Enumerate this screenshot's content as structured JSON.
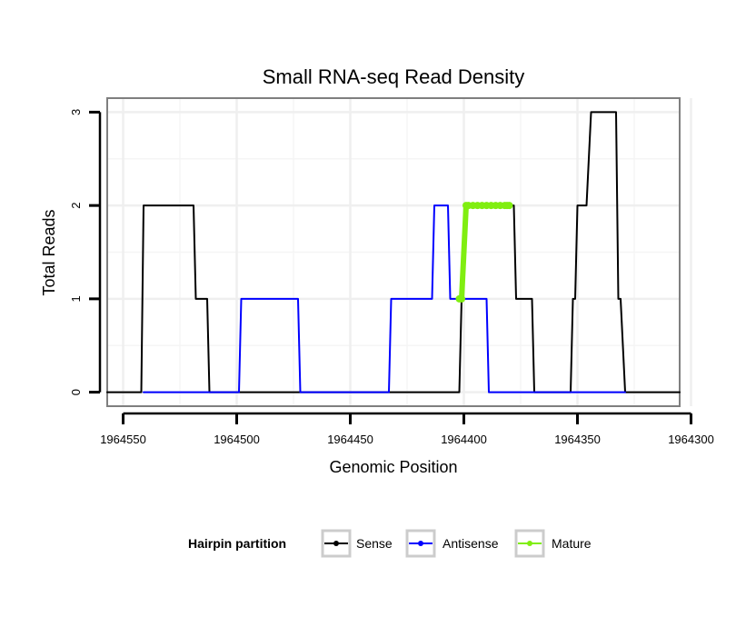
{
  "chart_data": {
    "type": "line",
    "title": "Small RNA-seq Read Density",
    "xlabel": "Genomic Position",
    "ylabel": "Total Reads",
    "x_reversed": true,
    "xlim": [
      1964557,
      1964305
    ],
    "ylim": [
      -0.15,
      3.15
    ],
    "x_ticks": [
      1964550,
      1964500,
      1964450,
      1964400,
      1964350,
      1964300
    ],
    "x_tick_labels": [
      "1964550",
      "1964500",
      "1964450",
      "1964400",
      "1964350",
      "1964300"
    ],
    "y_ticks": [
      0,
      1,
      2,
      3
    ],
    "y_tick_labels": [
      "0",
      "1",
      "2",
      "3"
    ],
    "grid": true,
    "legend": {
      "title": "Hairpin partition",
      "position": "bottom",
      "entries": [
        "Sense",
        "Antisense",
        "Mature"
      ]
    },
    "series": [
      {
        "name": "Sense",
        "color": "#000000",
        "points": [
          [
            1964557,
            0
          ],
          [
            1964542,
            0
          ],
          [
            1964541,
            2
          ],
          [
            1964519,
            2
          ],
          [
            1964518,
            1
          ],
          [
            1964513,
            1
          ],
          [
            1964512,
            0
          ],
          [
            1964402,
            0
          ],
          [
            1964401,
            1
          ],
          [
            1964399,
            2
          ],
          [
            1964378,
            2
          ],
          [
            1964377,
            1
          ],
          [
            1964370,
            1
          ],
          [
            1964369,
            0
          ],
          [
            1964353,
            0
          ],
          [
            1964352,
            1
          ],
          [
            1964351,
            1
          ],
          [
            1964350,
            2
          ],
          [
            1964346,
            2
          ],
          [
            1964344,
            3
          ],
          [
            1964333,
            3
          ],
          [
            1964332,
            1
          ],
          [
            1964331,
            1
          ],
          [
            1964329,
            0
          ],
          [
            1964305,
            0
          ]
        ]
      },
      {
        "name": "Antisense",
        "color": "#0000ff",
        "points": [
          [
            1964541,
            0
          ],
          [
            1964499,
            0
          ],
          [
            1964498,
            1
          ],
          [
            1964473,
            1
          ],
          [
            1964472,
            0
          ],
          [
            1964433,
            0
          ],
          [
            1964432,
            1
          ],
          [
            1964414,
            1
          ],
          [
            1964413,
            2
          ],
          [
            1964407,
            2
          ],
          [
            1964406,
            1
          ],
          [
            1964390,
            1
          ],
          [
            1964389,
            0
          ],
          [
            1964329,
            0
          ]
        ]
      },
      {
        "name": "Mature",
        "color": "#80ee10",
        "points": [
          [
            1964402,
            1
          ],
          [
            1964401,
            1
          ],
          [
            1964399,
            2
          ],
          [
            1964398,
            2
          ],
          [
            1964396,
            2
          ],
          [
            1964394,
            2
          ],
          [
            1964392,
            2
          ],
          [
            1964390,
            2
          ],
          [
            1964388,
            2
          ],
          [
            1964386,
            2
          ],
          [
            1964384,
            2
          ],
          [
            1964382,
            2
          ],
          [
            1964381,
            2
          ],
          [
            1964380,
            2
          ]
        ]
      }
    ]
  }
}
